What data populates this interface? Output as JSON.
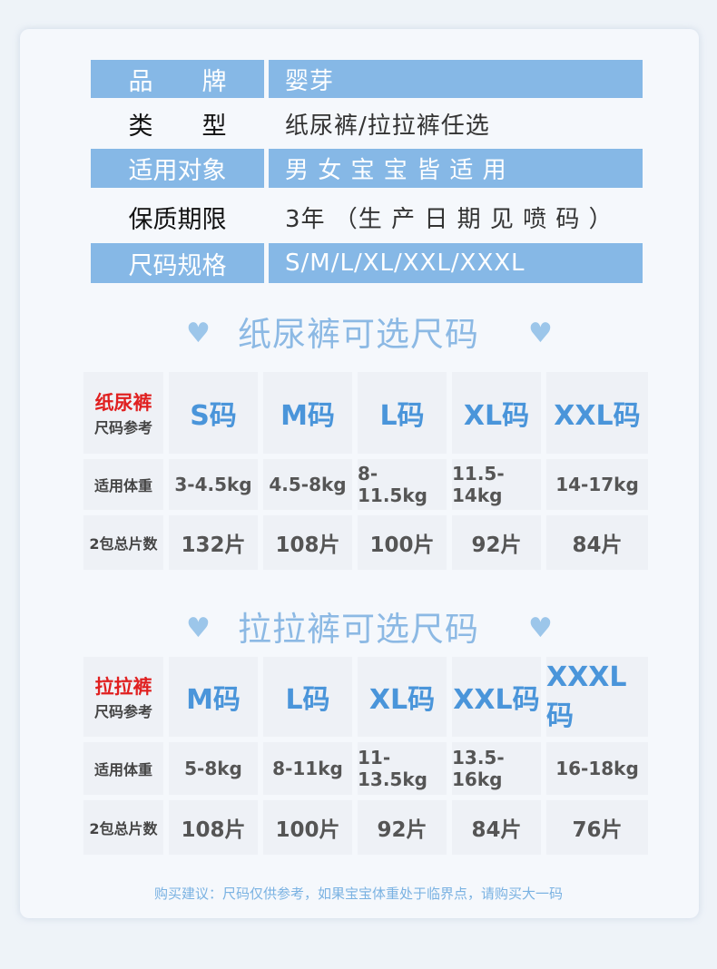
{
  "info": [
    {
      "label": "品　　牌",
      "value": "婴芽",
      "blue": true
    },
    {
      "label": "类　　型",
      "value": "纸尿裤/拉拉裤任选",
      "blue": false
    },
    {
      "label": "适用对象",
      "value": "男 女 宝 宝 皆 适 用",
      "blue": true
    },
    {
      "label": "保质期限",
      "value": "3年 （生 产 日 期 见 喷 码 ）",
      "blue": false
    },
    {
      "label": "尺码规格",
      "value": "S/M/L/XL/XXL/XXXL",
      "blue": true
    }
  ],
  "tables": [
    {
      "title": "纸尿裤可选尺码",
      "corner_title": "纸尿裤",
      "corner_sub": "尺码参考",
      "sizes": [
        "S码",
        "M码",
        "L码",
        "XL码",
        "XXL码"
      ],
      "weight_label": "适用体重",
      "weights": [
        "3-4.5kg",
        "4.5-8kg",
        "8-11.5kg",
        "11.5-14kg",
        "14-17kg"
      ],
      "count_label": "2包总片数",
      "counts": [
        "132片",
        "108片",
        "100片",
        "92片",
        "84片"
      ]
    },
    {
      "title": "拉拉裤可选尺码",
      "corner_title": "拉拉裤",
      "corner_sub": "尺码参考",
      "sizes": [
        "M码",
        "L码",
        "XL码",
        "XXL码",
        "XXXL码"
      ],
      "weight_label": "适用体重",
      "weights": [
        "5-8kg",
        "8-11kg",
        "11-13.5kg",
        "13.5-16kg",
        "16-18kg"
      ],
      "count_label": "2包总片数",
      "counts": [
        "108片",
        "100片",
        "92片",
        "84片",
        "76片"
      ]
    }
  ],
  "note": "购买建议：尺码仅供参考，如果宝宝体重处于临界点，请购买大一码",
  "colors": {
    "header_blue": "#86b8e6",
    "size_blue": "#4a95da",
    "accent_red": "#e02020"
  }
}
